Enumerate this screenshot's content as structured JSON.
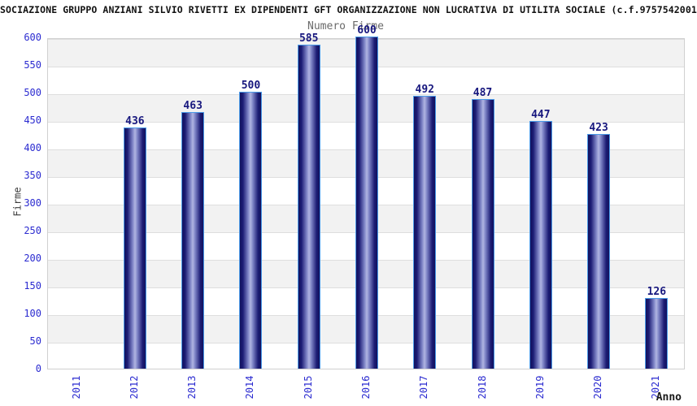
{
  "page": {
    "title": "SOCIAZIONE GRUPPO ANZIANI SILVIO RIVETTI EX DIPENDENTI GFT ORGANIZZAZIONE NON LUCRATIVA DI UTILITA SOCIALE (c.f.9757542001"
  },
  "chart_data": {
    "type": "bar",
    "title": "Numero Firme",
    "xlabel": "Anno",
    "ylabel": "Firme",
    "categories": [
      "2011",
      "2012",
      "2013",
      "2014",
      "2015",
      "2016",
      "2017",
      "2018",
      "2019",
      "2020",
      "2021"
    ],
    "values": [
      null,
      436,
      463,
      500,
      585,
      600,
      492,
      487,
      447,
      423,
      126
    ],
    "ylim": [
      0,
      600
    ],
    "ytick_step": 50,
    "yticks": [
      0,
      50,
      100,
      150,
      200,
      250,
      300,
      350,
      400,
      450,
      500,
      550,
      600
    ],
    "legend": "none",
    "grid": "horizontal-bands-alternating",
    "colors": {
      "axis_tick_text": "#2b2bd0",
      "value_label_text": "#17177e",
      "bar_edge": "#12125e",
      "bar_dark": "#1c1c74",
      "bar_mid": "#7b81c4",
      "bar_highlight": "#b0b5e2",
      "bar_border": "#4a9ae8",
      "band_gray": "#f2f2f2",
      "band_white": "#ffffff",
      "gridline": "#dedede",
      "plot_border": "#d0d0d0"
    }
  }
}
